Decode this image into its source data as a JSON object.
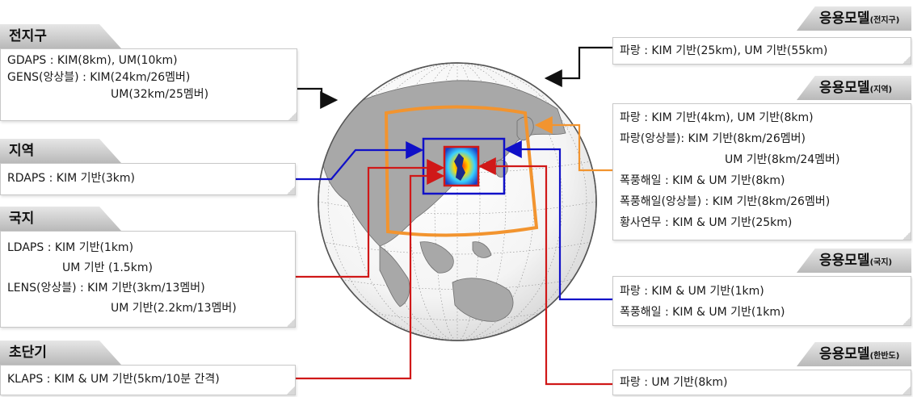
{
  "left_panels": [
    {
      "title": "전지구",
      "lines": [
        "GDAPS : KIM(8km), UM(10km)",
        "GENS(앙상블) : KIM(24km/26멤버)",
        "UM(32km/25멤버)"
      ]
    },
    {
      "title": "지역",
      "lines": [
        "RDAPS : KIM 기반(3km)"
      ]
    },
    {
      "title": "국지",
      "lines": [
        "LDAPS : KIM 기반(1km)",
        "UM 기반 (1.5km)",
        "LENS(앙상블) : KIM 기반(3km/13멤버)",
        "UM 기반(2.2km/13멤버)"
      ]
    },
    {
      "title": "초단기",
      "lines": [
        "KLAPS : KIM & UM 기반(5km/10분 간격)"
      ]
    }
  ],
  "right_panels": [
    {
      "title": "응용모델",
      "sub": "(전지구)",
      "lines": [
        "파랑 : KIM 기반(25km), UM 기반(55km)"
      ]
    },
    {
      "title": "응용모델",
      "sub": "(지역)",
      "lines": [
        "파랑 : KIM 기반(4km), UM 기반(8km)",
        "파랑(앙상블): KIM 기반(8km/26멤버)",
        "UM 기반(8km/24멤버)",
        "폭풍해일 : KIM & UM 기반(8km)",
        "폭풍해일(앙상블) : KIM 기반(8km/26멤버)",
        "황사연무 : KIM & UM 기반(25km)"
      ]
    },
    {
      "title": "응용모델",
      "sub": "(국지)",
      "lines": [
        "파랑 : KIM & UM 기반(1km)",
        "폭풍해일 : KIM & UM 기반(1km)"
      ]
    },
    {
      "title": "응용모델",
      "sub": "(한반도)",
      "lines": [
        "파랑 : UM 기반(8km)"
      ]
    }
  ],
  "colors": {
    "black_arrow": "#111111",
    "blue_arrow": "#1010c8",
    "red_arrow": "#d01818",
    "orange_domain": "#f2942f",
    "tab_fill": "#c8c8c8"
  }
}
